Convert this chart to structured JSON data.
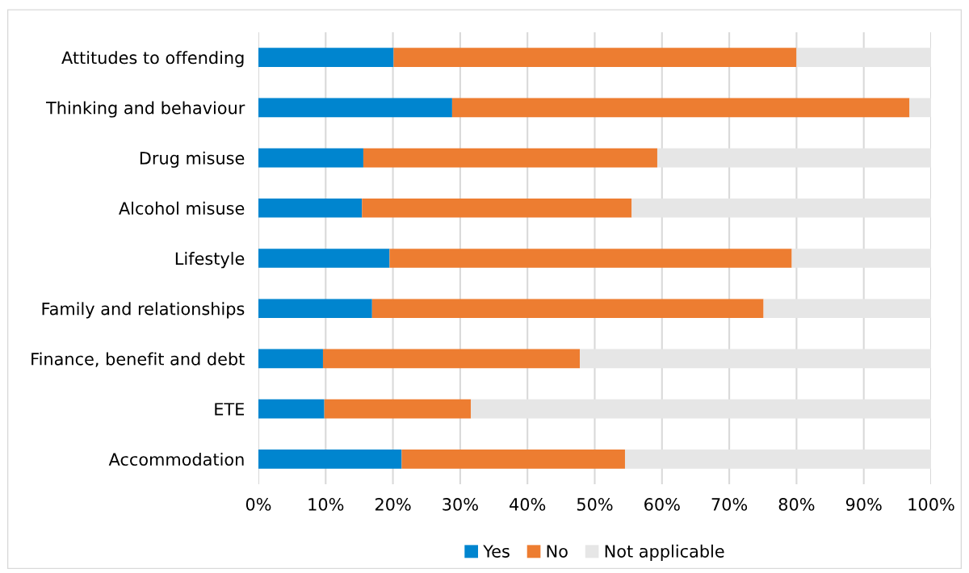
{
  "chart_data": {
    "type": "bar",
    "orientation": "horizontal",
    "stacked": true,
    "categories": [
      "Attitudes to offending",
      "Thinking and behaviour",
      "Drug misuse",
      "Alcohol misuse",
      "Lifestyle",
      "Family and relationships",
      "Finance, benefit and debt",
      "ETE",
      "Accommodation"
    ],
    "series": [
      {
        "name": "Yes",
        "color": "#0085cf",
        "values": [
          20.1,
          28.8,
          15.6,
          15.4,
          19.5,
          16.9,
          9.6,
          9.8,
          21.3
        ]
      },
      {
        "name": "No",
        "color": "#ed7d31",
        "values": [
          59.9,
          68.0,
          43.7,
          40.1,
          59.8,
          58.2,
          38.2,
          21.8,
          33.2
        ]
      },
      {
        "name": "Not applicable",
        "color": "#e6e6e6",
        "values": [
          20.0,
          3.2,
          40.7,
          44.5,
          20.7,
          24.9,
          52.2,
          68.4,
          45.5
        ]
      }
    ],
    "xlim": [
      0,
      100
    ],
    "xticks": [
      {
        "value": 0,
        "label": "0%"
      },
      {
        "value": 10,
        "label": "10%"
      },
      {
        "value": 20,
        "label": "20%"
      },
      {
        "value": 30,
        "label": "30%"
      },
      {
        "value": 40,
        "label": "40%"
      },
      {
        "value": 50,
        "label": "50%"
      },
      {
        "value": 60,
        "label": "60%"
      },
      {
        "value": 70,
        "label": "70%"
      },
      {
        "value": 80,
        "label": "80%"
      },
      {
        "value": 90,
        "label": "90%"
      },
      {
        "value": 100,
        "label": "100%"
      }
    ],
    "grid": "x",
    "legend": "bottom"
  }
}
